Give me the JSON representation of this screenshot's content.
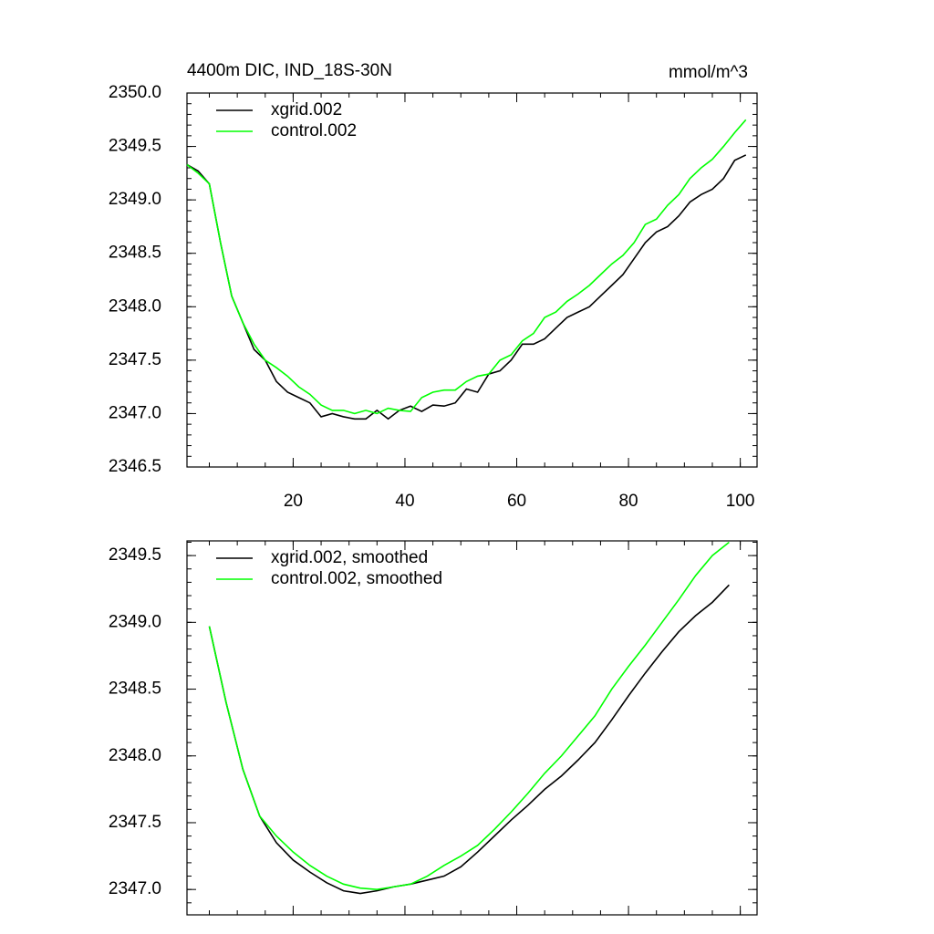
{
  "chart_data": [
    {
      "type": "line",
      "title": "4400m DIC, IND_18S-30N",
      "units": "mmol/m^3",
      "x": [
        1,
        3,
        5,
        7,
        9,
        11,
        13,
        15,
        17,
        19,
        21,
        23,
        25,
        27,
        29,
        31,
        33,
        35,
        37,
        39,
        41,
        43,
        45,
        47,
        49,
        51,
        53,
        55,
        57,
        59,
        61,
        63,
        65,
        67,
        69,
        71,
        73,
        75,
        77,
        79,
        81,
        83,
        85,
        87,
        89,
        91,
        93,
        95,
        97,
        99,
        101
      ],
      "series": [
        {
          "name": "xgrid.002",
          "color": "#000000",
          "values": [
            2349.33,
            2349.27,
            2349.15,
            2348.6,
            2348.1,
            2347.85,
            2347.6,
            2347.5,
            2347.3,
            2347.2,
            2347.15,
            2347.1,
            2346.97,
            2347.0,
            2346.97,
            2346.95,
            2346.95,
            2347.03,
            2346.95,
            2347.03,
            2347.07,
            2347.02,
            2347.08,
            2347.07,
            2347.1,
            2347.23,
            2347.2,
            2347.37,
            2347.4,
            2347.5,
            2347.65,
            2347.65,
            2347.7,
            2347.8,
            2347.9,
            2347.95,
            2348.0,
            2348.1,
            2348.2,
            2348.3,
            2348.45,
            2348.6,
            2348.7,
            2348.75,
            2348.85,
            2348.98,
            2349.05,
            2349.1,
            2349.2,
            2349.37,
            2349.42
          ]
        },
        {
          "name": "control.002",
          "color": "#00ff00",
          "values": [
            2349.33,
            2349.25,
            2349.15,
            2348.6,
            2348.1,
            2347.85,
            2347.65,
            2347.5,
            2347.43,
            2347.35,
            2347.25,
            2347.18,
            2347.08,
            2347.03,
            2347.03,
            2347.0,
            2347.03,
            2347.0,
            2347.05,
            2347.03,
            2347.02,
            2347.15,
            2347.2,
            2347.22,
            2347.22,
            2347.3,
            2347.35,
            2347.37,
            2347.5,
            2347.55,
            2347.68,
            2347.75,
            2347.9,
            2347.95,
            2348.05,
            2348.12,
            2348.2,
            2348.3,
            2348.4,
            2348.48,
            2348.6,
            2348.77,
            2348.82,
            2348.95,
            2349.05,
            2349.2,
            2349.3,
            2349.38,
            2349.5,
            2349.63,
            2349.75
          ]
        }
      ],
      "xlim": [
        1,
        103
      ],
      "xticks": [
        20,
        40,
        60,
        80,
        100
      ],
      "ylim": [
        2346.5,
        2350.0
      ],
      "yticks": [
        {
          "value": 2346.5,
          "label": "2346.5"
        },
        {
          "value": 2347,
          "label": "2347.0"
        },
        2347.5,
        {
          "value": 2348,
          "label": "2348.0"
        },
        2348.5,
        {
          "value": 2349,
          "label": "2349.0"
        },
        2349.5,
        {
          "value": 2350,
          "label": "2350.0"
        }
      ],
      "legend": "upper left"
    },
    {
      "type": "line",
      "x": [
        5,
        8,
        11,
        14,
        17,
        20,
        23,
        26,
        29,
        32,
        35,
        38,
        41,
        44,
        47,
        50,
        53,
        56,
        59,
        62,
        65,
        68,
        71,
        74,
        77,
        80,
        83,
        86,
        89,
        92,
        95,
        98
      ],
      "series": [
        {
          "name": "xgrid.002, smoothed",
          "color": "#000000",
          "values": [
            2348.97,
            2348.4,
            2347.9,
            2347.55,
            2347.35,
            2347.22,
            2347.13,
            2347.05,
            2346.99,
            2346.97,
            2346.99,
            2347.02,
            2347.04,
            2347.07,
            2347.1,
            2347.17,
            2347.28,
            2347.4,
            2347.52,
            2347.63,
            2347.75,
            2347.85,
            2347.97,
            2348.1,
            2348.27,
            2348.45,
            2348.62,
            2348.78,
            2348.93,
            2349.05,
            2349.15,
            2349.28
          ]
        },
        {
          "name": "control.002, smoothed",
          "color": "#00ff00",
          "values": [
            2348.97,
            2348.4,
            2347.9,
            2347.55,
            2347.4,
            2347.28,
            2347.18,
            2347.1,
            2347.04,
            2347.01,
            2347.0,
            2347.02,
            2347.04,
            2347.1,
            2347.18,
            2347.25,
            2347.33,
            2347.45,
            2347.58,
            2347.72,
            2347.87,
            2348.0,
            2348.15,
            2348.3,
            2348.5,
            2348.67,
            2348.83,
            2349.0,
            2349.17,
            2349.35,
            2349.5,
            2349.6
          ]
        }
      ],
      "xlim": [
        1,
        103
      ],
      "xticks": [
        20,
        40,
        60,
        80,
        100
      ],
      "xtick_labels": false,
      "ylim": [
        2346.81,
        2349.61
      ],
      "yticks": [
        {
          "value": 2347,
          "label": "2347.0"
        },
        2347.5,
        {
          "value": 2348,
          "label": "2348.0"
        },
        2348.5,
        {
          "value": 2349,
          "label": "2349.0"
        },
        2349.5
      ],
      "legend": "upper left"
    }
  ]
}
